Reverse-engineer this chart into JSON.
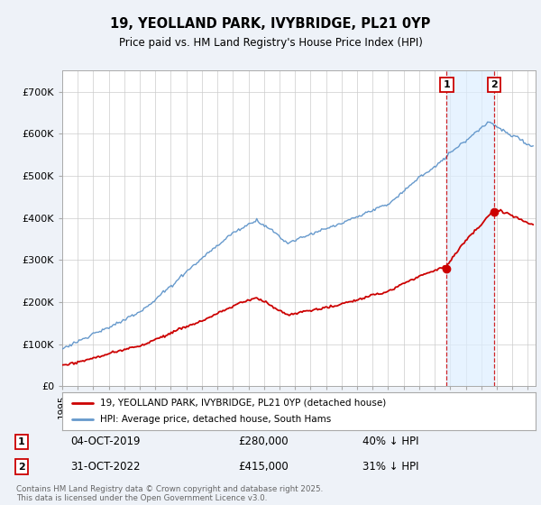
{
  "title": "19, YEOLLAND PARK, IVYBRIDGE, PL21 0YP",
  "subtitle": "Price paid vs. HM Land Registry's House Price Index (HPI)",
  "ylim": [
    0,
    750000
  ],
  "yticks": [
    0,
    100000,
    200000,
    300000,
    400000,
    500000,
    600000,
    700000
  ],
  "ytick_labels": [
    "£0",
    "£100K",
    "£200K",
    "£300K",
    "£400K",
    "£500K",
    "£600K",
    "£700K"
  ],
  "xlim_start": 1995.0,
  "xlim_end": 2025.5,
  "transaction1_date": 2019.77,
  "transaction1_price": 280000,
  "transaction2_date": 2022.83,
  "transaction2_price": 415000,
  "transaction1_text": "04-OCT-2019",
  "transaction1_amount": "£280,000",
  "transaction1_pct": "40% ↓ HPI",
  "transaction2_text": "31-OCT-2022",
  "transaction2_amount": "£415,000",
  "transaction2_pct": "31% ↓ HPI",
  "red_color": "#cc0000",
  "blue_color": "#6699cc",
  "shade_color": "#ddeeff",
  "legend_label1": "19, YEOLLAND PARK, IVYBRIDGE, PL21 0YP (detached house)",
  "legend_label2": "HPI: Average price, detached house, South Hams",
  "footer": "Contains HM Land Registry data © Crown copyright and database right 2025.\nThis data is licensed under the Open Government Licence v3.0.",
  "bg_color": "#eef2f8",
  "plot_bg": "#ffffff"
}
